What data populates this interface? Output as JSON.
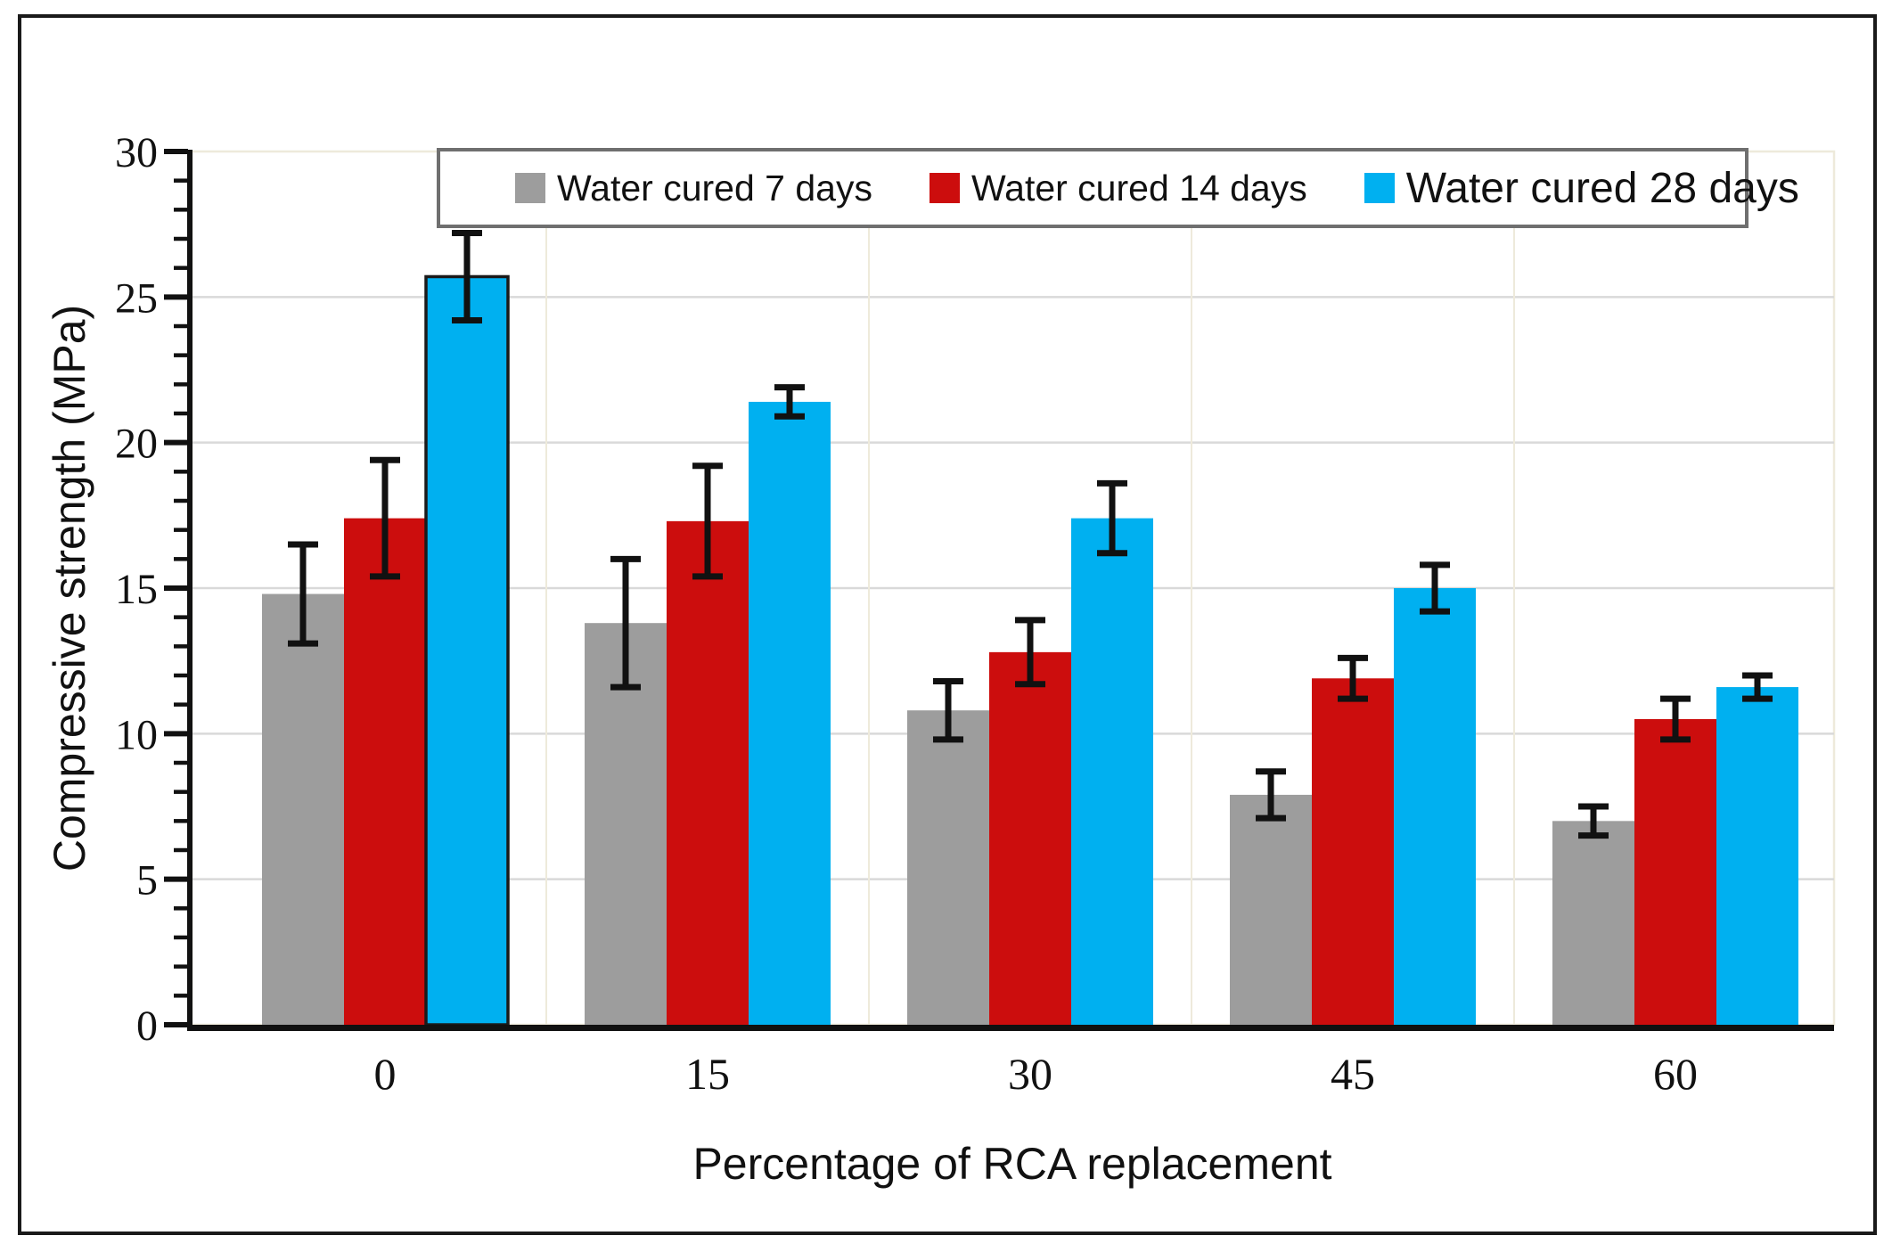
{
  "figure": {
    "background_color": "#ffffff",
    "border_color": "#1a1a1a"
  },
  "chart_data": {
    "type": "bar",
    "title": "",
    "xlabel": "Percentage of RCA replacement",
    "ylabel": "Compressive strength (MPa)",
    "categories": [
      "0",
      "15",
      "30",
      "45",
      "60"
    ],
    "series": [
      {
        "name": "Water cured 7 days",
        "color": "#9d9d9d",
        "values": [
          14.8,
          13.8,
          10.8,
          7.9,
          7.0
        ],
        "errors": [
          1.7,
          2.2,
          1.0,
          0.8,
          0.5
        ]
      },
      {
        "name": "Water cured 14 days",
        "color": "#cc0d0d",
        "values": [
          17.4,
          17.3,
          12.8,
          11.9,
          10.5
        ],
        "errors": [
          2.0,
          1.9,
          1.1,
          0.7,
          0.7
        ]
      },
      {
        "name": "Water cured 28 days",
        "color": "#00b0f0",
        "values": [
          25.7,
          21.4,
          17.4,
          15.0,
          11.6
        ],
        "errors": [
          1.5,
          0.5,
          1.2,
          0.8,
          0.4
        ]
      }
    ],
    "ylim": [
      0,
      30
    ],
    "y_ticks": [
      0,
      5,
      10,
      15,
      20,
      25,
      30
    ],
    "minor_tick_step": 1,
    "grid": "horizontal",
    "grid_color": "#d9d9d9",
    "plot_border_color": "#eeeadb",
    "axis_color": "#111111",
    "error_bar_color": "#111111",
    "legend_position": "top",
    "legend_border_color": "#6f6f6f",
    "error_bars": true,
    "outlined_bar": {
      "series_index": 2,
      "category_index": 0
    }
  }
}
